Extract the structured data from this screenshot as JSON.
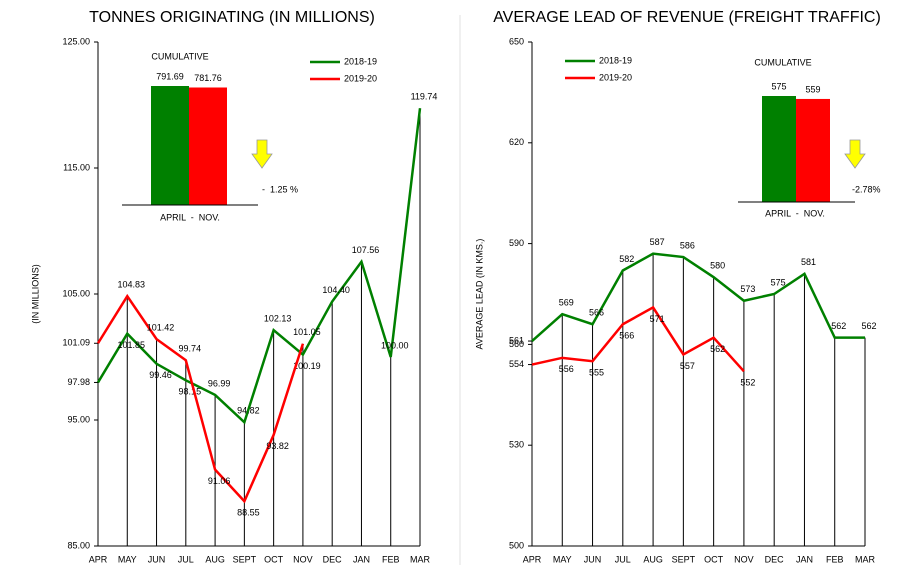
{
  "chart_data": [
    {
      "type": "line",
      "title": "TONNES ORIGINATING (IN MILLIONS)",
      "y_label": "(IN MILLIONS)",
      "categories": [
        "APR",
        "MAY",
        "JUN",
        "JUL",
        "AUG",
        "SEPT",
        "OCT",
        "NOV",
        "DEC",
        "JAN",
        "FEB",
        "MAR"
      ],
      "ylim": [
        85,
        125
      ],
      "yticks": [
        {
          "value": 85,
          "label": "85.00"
        },
        {
          "value": 95,
          "label": "95.00"
        },
        97.98,
        101.09,
        {
          "value": 105,
          "label": "105.00"
        },
        {
          "value": 115,
          "label": "115.00"
        },
        {
          "value": 125,
          "label": "125.00"
        }
      ],
      "legend": "upper right",
      "series": [
        {
          "name": "2018-19",
          "color": "#008000",
          "values": [
            97.98,
            101.85,
            99.46,
            98.15,
            96.99,
            94.82,
            102.13,
            100.19,
            104.4,
            107.56,
            100,
            119.74
          ],
          "value_labels": [
            null,
            "101.85",
            "99.46",
            "98.15",
            "96.99",
            "94.82",
            "102.13",
            "100.19",
            "104.40",
            "107.56",
            "100.00",
            "119.74"
          ]
        },
        {
          "name": "2019-20",
          "color": "#ff0000",
          "values": [
            101.09,
            104.83,
            101.42,
            99.74,
            91.06,
            88.55,
            93.82,
            101.05,
            null,
            null,
            null,
            null
          ],
          "value_labels": [
            null,
            "104.83",
            "101.42",
            "99.74",
            "91.06",
            "88.55",
            "93.82",
            "101.05",
            null,
            null,
            null,
            null
          ]
        }
      ],
      "inset": {
        "title": "CUMULATIVE",
        "values": [
          791.69,
          781.76
        ],
        "colors": [
          "#008000",
          "#ff0000"
        ],
        "label": "APRIL  -  NOV.",
        "change": "-  1.25 %"
      }
    },
    {
      "type": "line",
      "title": "AVERAGE LEAD OF REVENUE (FREIGHT TRAFFIC)",
      "y_label": "AVERAGE LEAD (IN KMS.)",
      "categories": [
        "APR",
        "MAY",
        "JUN",
        "JUL",
        "AUG",
        "SEPT",
        "OCT",
        "NOV",
        "DEC",
        "JAN",
        "FEB",
        "MAR"
      ],
      "ylim": [
        500,
        650
      ],
      "yticks": [
        500,
        530,
        554,
        560,
        561,
        590,
        620,
        650
      ],
      "legend": "upper left",
      "series": [
        {
          "name": "2018-19",
          "color": "#008000",
          "values": [
            561,
            569,
            566,
            582,
            587,
            586,
            580,
            573,
            575,
            581,
            562,
            562
          ],
          "value_labels": [
            null,
            "569",
            "566",
            "582",
            "587",
            "586",
            "580",
            "573",
            "575",
            "581",
            "562",
            "562"
          ]
        },
        {
          "name": "2019-20",
          "color": "#ff0000",
          "values": [
            554,
            556,
            555,
            566,
            571,
            557,
            562,
            552,
            null,
            null,
            null,
            null
          ],
          "value_labels": [
            null,
            "556",
            "555",
            "566",
            "571",
            "557",
            "562",
            "552",
            null,
            null,
            null,
            null
          ]
        }
      ],
      "inset": {
        "title": "CUMULATIVE",
        "values": [
          575,
          559
        ],
        "colors": [
          "#008000",
          "#ff0000"
        ],
        "label": "APRIL  -  NOV.",
        "change": "-2.78%"
      }
    }
  ]
}
